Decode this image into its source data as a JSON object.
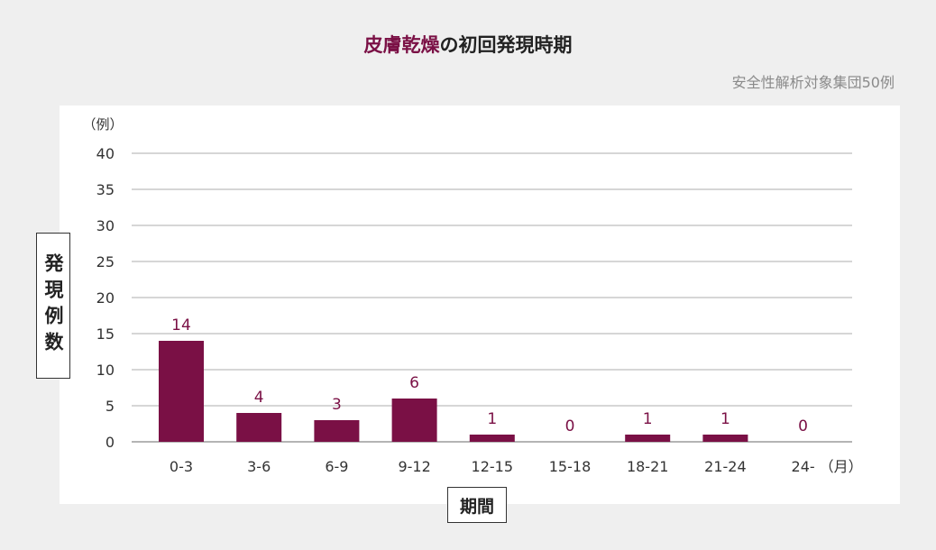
{
  "title": {
    "highlight": "皮膚乾燥",
    "rest": "の初回発現時期"
  },
  "subtitle": "安全性解析対象集団50例",
  "colors": {
    "bar": "#7a1045",
    "label": "#7a1045",
    "grid": "#bdbdbd",
    "axis_text": "#333333"
  },
  "chart_data": {
    "type": "bar",
    "categories": [
      "0-3",
      "3-6",
      "6-9",
      "9-12",
      "12-15",
      "15-18",
      "18-21",
      "21-24",
      "24-"
    ],
    "values": [
      14,
      4,
      3,
      6,
      1,
      0,
      1,
      1,
      0
    ],
    "x_unit": "（月）",
    "y_unit": "（例）",
    "ylabel": "発現例数",
    "xlabel": "期間",
    "ylim": [
      0,
      40
    ],
    "yticks": [
      0,
      5,
      10,
      15,
      20,
      25,
      30,
      35,
      40
    ],
    "grid": true,
    "data_labels": true
  }
}
